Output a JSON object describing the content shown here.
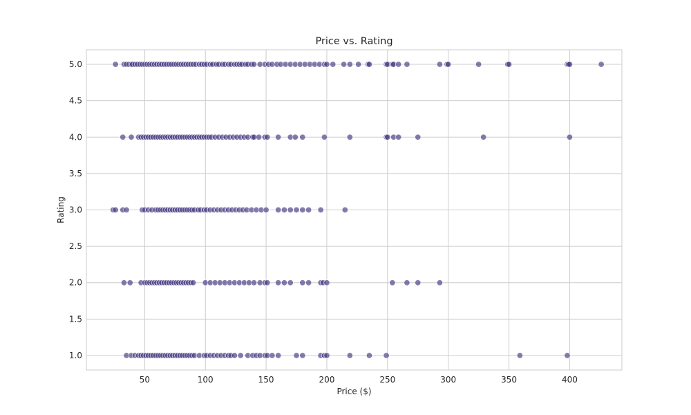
{
  "chart_data": {
    "type": "scatter",
    "title": "Price vs. Rating",
    "xlabel": "Price ($)",
    "ylabel": "Rating",
    "xlim": [
      2,
      443
    ],
    "ylim": [
      0.8,
      5.2
    ],
    "xticks": [
      50,
      100,
      150,
      200,
      250,
      300,
      350,
      400
    ],
    "yticks": [
      1.0,
      1.5,
      2.0,
      2.5,
      3.0,
      3.5,
      4.0,
      4.5,
      5.0
    ],
    "grid": true,
    "marker_color": "#453781",
    "marker_edge": "#ffffff",
    "marker_alpha": 0.65,
    "series": [
      {
        "values": [
          {
            "rating": 5.0,
            "prices": [
              26,
              33,
              35,
              37,
              39,
              40,
              42,
              44,
              46,
              48,
              50,
              52,
              54,
              56,
              58,
              60,
              62,
              64,
              66,
              68,
              70,
              72,
              74,
              76,
              78,
              80,
              82,
              84,
              86,
              88,
              90,
              92,
              95,
              97,
              99,
              101,
              104,
              106,
              109,
              111,
              114,
              116,
              119,
              121,
              124,
              126,
              128,
              130,
              133,
              135,
              138,
              140,
              145,
              149,
              152,
              155,
              159,
              162,
              166,
              170,
              174,
              178,
              182,
              186,
              190,
              194,
              198,
              200,
              205,
              214,
              219,
              226,
              234,
              235,
              249,
              250,
              254,
              255,
              259,
              266,
              293,
              299,
              300,
              325,
              349,
              350,
              398,
              399,
              400,
              426
            ]
          },
          {
            "rating": 4.0,
            "prices": [
              32,
              39,
              45,
              47,
              49,
              51,
              53,
              55,
              57,
              59,
              61,
              63,
              65,
              67,
              69,
              71,
              73,
              75,
              77,
              79,
              81,
              83,
              85,
              87,
              89,
              91,
              93,
              95,
              97,
              99,
              101,
              103,
              105,
              108,
              111,
              114,
              117,
              120,
              123,
              126,
              129,
              132,
              135,
              139,
              140,
              144,
              149,
              151,
              160,
              170,
              174,
              180,
              198,
              219,
              249,
              250,
              255,
              259,
              275,
              329,
              400
            ]
          },
          {
            "rating": 3.0,
            "prices": [
              24,
              26,
              32,
              35,
              48,
              50,
              53,
              56,
              59,
              61,
              63,
              65,
              67,
              69,
              71,
              73,
              75,
              77,
              79,
              81,
              83,
              85,
              87,
              89,
              91,
              94,
              96,
              99,
              101,
              104,
              107,
              110,
              113,
              116,
              119,
              122,
              125,
              128,
              131,
              134,
              138,
              142,
              146,
              150,
              160,
              165,
              170,
              175,
              180,
              185,
              195,
              215
            ]
          },
          {
            "rating": 2.0,
            "prices": [
              33,
              38,
              47,
              50,
              52,
              54,
              56,
              58,
              60,
              62,
              64,
              66,
              68,
              70,
              72,
              74,
              76,
              78,
              80,
              82,
              84,
              86,
              88,
              90,
              100,
              104,
              108,
              112,
              116,
              120,
              124,
              128,
              132,
              136,
              140,
              145,
              149,
              151,
              160,
              165,
              170,
              180,
              185,
              195,
              197,
              200,
              254,
              266,
              275,
              293
            ]
          },
          {
            "rating": 1.0,
            "prices": [
              35,
              39,
              42,
              45,
              47,
              49,
              51,
              53,
              55,
              57,
              59,
              61,
              63,
              65,
              67,
              69,
              71,
              73,
              75,
              77,
              79,
              81,
              83,
              85,
              87,
              89,
              91,
              95,
              99,
              101,
              104,
              107,
              110,
              113,
              116,
              119,
              121,
              124,
              129,
              135,
              139,
              142,
              145,
              149,
              151,
              155,
              160,
              175,
              180,
              195,
              198,
              200,
              219,
              235,
              249,
              359,
              398
            ]
          }
        ]
      }
    ]
  }
}
